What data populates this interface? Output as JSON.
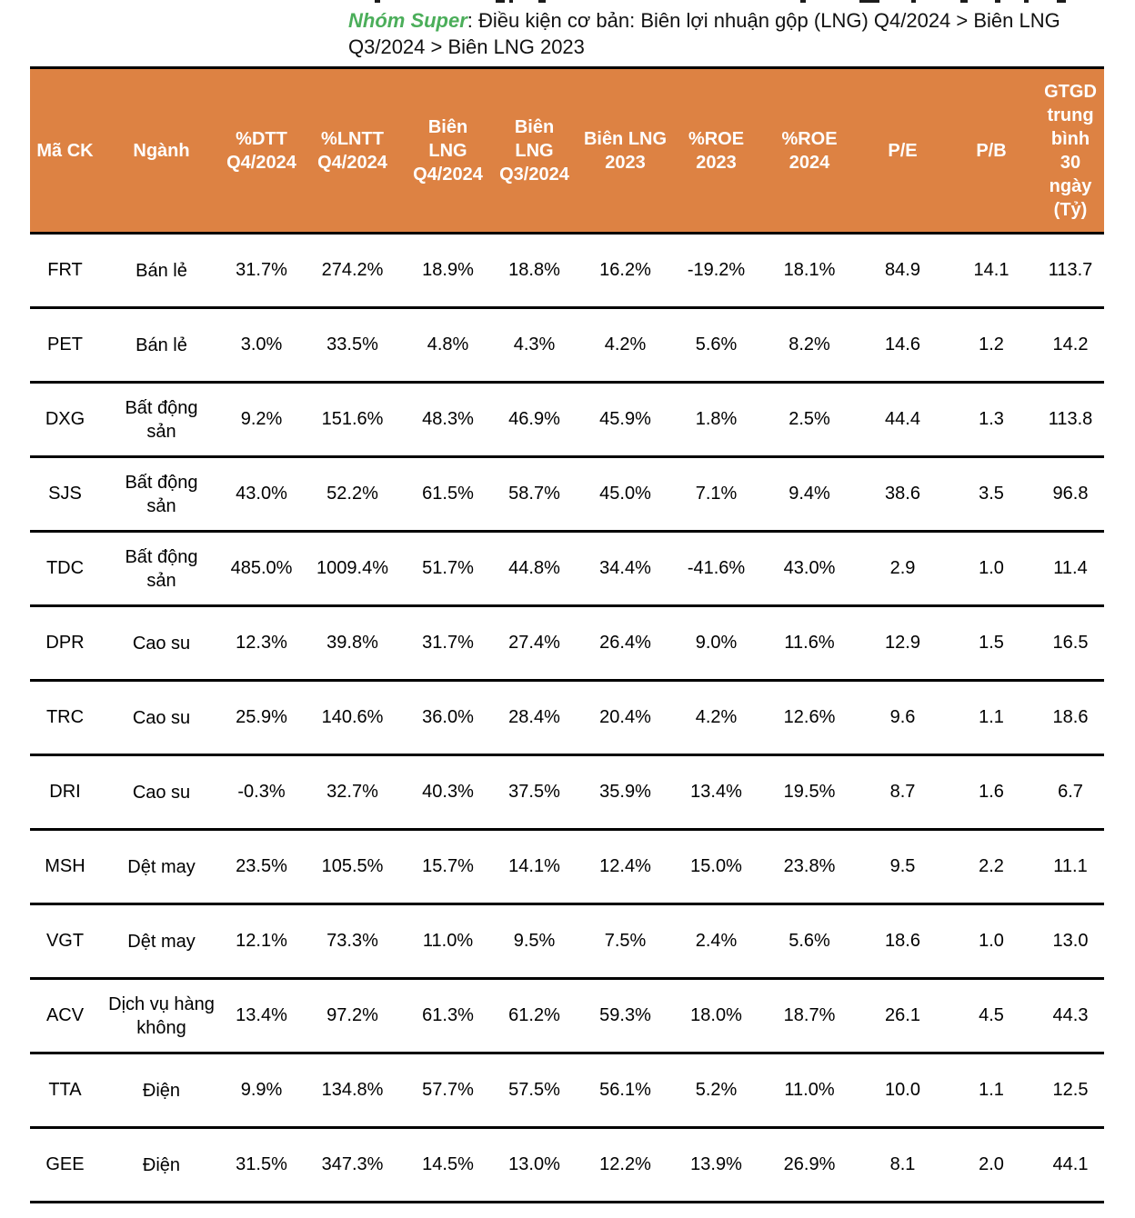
{
  "caption": {
    "group_label": "Nhóm Super",
    "rest": ": Điều kiện cơ bản: Biên lợi nhuận gộp (LNG) Q4/2024 > Biên LNG Q3/2024 > Biên LNG 2023"
  },
  "colors": {
    "header_background": "#DD8243",
    "header_text": "#FFFFFF",
    "caption_group_green": "#4BAE5A",
    "border_black": "#000000"
  },
  "table": {
    "header_labels": [
      "Mã CK",
      "Ngành",
      "%DTT\nQ4/2024",
      "%LNTT\nQ4/2024",
      "Biên LNG\nQ4/2024",
      "Biên\nLNG\nQ3/2024",
      "Biên LNG\n2023",
      "%ROE\n2023",
      "%ROE 2024",
      "P/E",
      "P/B",
      "GTGD\ntrung\nbình\n30\nngày\n(Tỷ)"
    ],
    "industry_display": [
      "Bán lẻ",
      "Bán lẻ",
      "Bất động\nsản",
      "Bất động\nsản",
      "Bất động\nsản",
      "Cao su",
      "Cao su",
      "Cao su",
      "Dệt may",
      "Dệt may",
      "Dịch vụ hàng\nkhông",
      "Điện",
      "Điện"
    ]
  },
  "chart_data": {
    "type": "table",
    "title": "Nhóm Super: Điều kiện cơ bản: Biên lợi nhuận gộp (LNG) Q4/2024 > Biên LNG Q3/2024 > Biên LNG 2023",
    "columns": [
      "Mã CK",
      "Ngành",
      "%DTT Q4/2024",
      "%LNTT Q4/2024",
      "Biên LNG Q4/2024",
      "Biên LNG Q3/2024",
      "Biên LNG 2023",
      "%ROE 2023",
      "%ROE 2024",
      "P/E",
      "P/B",
      "GTGD trung bình 30 ngày (Tỷ)"
    ],
    "rows": [
      {
        "ticker": "FRT",
        "industry": "Bán lẻ",
        "values": [
          "31.7%",
          "274.2%",
          "18.9%",
          "18.8%",
          "16.2%",
          "-19.2%",
          "18.1%",
          "84.9",
          "14.1",
          "113.7"
        ]
      },
      {
        "ticker": "PET",
        "industry": "Bán lẻ",
        "values": [
          "3.0%",
          "33.5%",
          "4.8%",
          "4.3%",
          "4.2%",
          "5.6%",
          "8.2%",
          "14.6",
          "1.2",
          "14.2"
        ]
      },
      {
        "ticker": "DXG",
        "industry": "Bất động sản",
        "values": [
          "9.2%",
          "151.6%",
          "48.3%",
          "46.9%",
          "45.9%",
          "1.8%",
          "2.5%",
          "44.4",
          "1.3",
          "113.8"
        ]
      },
      {
        "ticker": "SJS",
        "industry": "Bất động sản",
        "values": [
          "43.0%",
          "52.2%",
          "61.5%",
          "58.7%",
          "45.0%",
          "7.1%",
          "9.4%",
          "38.6",
          "3.5",
          "96.8"
        ]
      },
      {
        "ticker": "TDC",
        "industry": "Bất động sản",
        "values": [
          "485.0%",
          "1009.4%",
          "51.7%",
          "44.8%",
          "34.4%",
          "-41.6%",
          "43.0%",
          "2.9",
          "1.0",
          "11.4"
        ]
      },
      {
        "ticker": "DPR",
        "industry": "Cao su",
        "values": [
          "12.3%",
          "39.8%",
          "31.7%",
          "27.4%",
          "26.4%",
          "9.0%",
          "11.6%",
          "12.9",
          "1.5",
          "16.5"
        ]
      },
      {
        "ticker": "TRC",
        "industry": "Cao su",
        "values": [
          "25.9%",
          "140.6%",
          "36.0%",
          "28.4%",
          "20.4%",
          "4.2%",
          "12.6%",
          "9.6",
          "1.1",
          "18.6"
        ]
      },
      {
        "ticker": "DRI",
        "industry": "Cao su",
        "values": [
          "-0.3%",
          "32.7%",
          "40.3%",
          "37.5%",
          "35.9%",
          "13.4%",
          "19.5%",
          "8.7",
          "1.6",
          "6.7"
        ]
      },
      {
        "ticker": "MSH",
        "industry": "Dệt may",
        "values": [
          "23.5%",
          "105.5%",
          "15.7%",
          "14.1%",
          "12.4%",
          "15.0%",
          "23.8%",
          "9.5",
          "2.2",
          "11.1"
        ]
      },
      {
        "ticker": "VGT",
        "industry": "Dệt may",
        "values": [
          "12.1%",
          "73.3%",
          "11.0%",
          "9.5%",
          "7.5%",
          "2.4%",
          "5.6%",
          "18.6",
          "1.0",
          "13.0"
        ]
      },
      {
        "ticker": "ACV",
        "industry": "Dịch vụ hàng không",
        "values": [
          "13.4%",
          "97.2%",
          "61.3%",
          "61.2%",
          "59.3%",
          "18.0%",
          "18.7%",
          "26.1",
          "4.5",
          "44.3"
        ]
      },
      {
        "ticker": "TTA",
        "industry": "Điện",
        "values": [
          "9.9%",
          "134.8%",
          "57.7%",
          "57.5%",
          "56.1%",
          "5.2%",
          "11.0%",
          "10.0",
          "1.1",
          "12.5"
        ]
      },
      {
        "ticker": "GEE",
        "industry": "Điện",
        "values": [
          "31.5%",
          "347.3%",
          "14.5%",
          "13.0%",
          "12.2%",
          "13.9%",
          "26.9%",
          "8.1",
          "2.0",
          "44.1"
        ]
      }
    ]
  }
}
